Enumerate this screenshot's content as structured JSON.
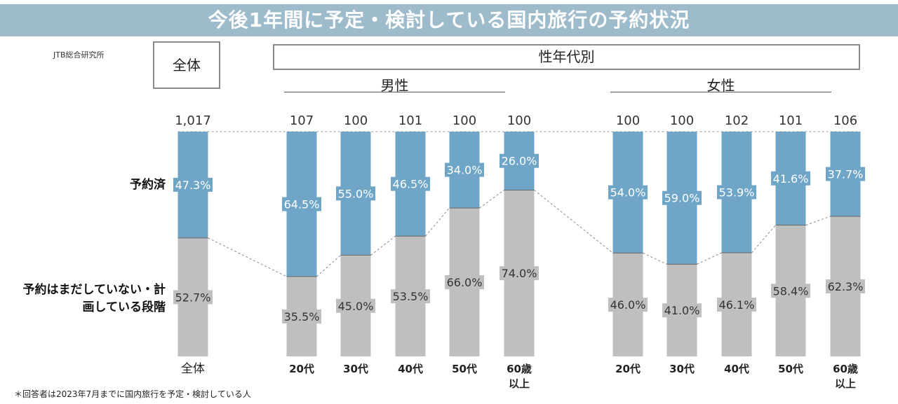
{
  "title": "今後1年間に予定・検討している国内旅行の予約状況",
  "source": "JTB総合研究所",
  "footnote": "＊回答者は2023年7月までに国内旅行を予定・検討している人",
  "headers": {
    "overall": "全体",
    "by_gender_age": "性年代別",
    "male": "男性",
    "female": "女性"
  },
  "row_labels": {
    "booked": "予約済",
    "not_booked": "予約はまだしていない・計画している段階"
  },
  "colors": {
    "booked": "#6fa5c6",
    "not_booked": "#bfbfbf",
    "banner": "#9dbbcb"
  },
  "chart_data": {
    "type": "bar",
    "stacked": "100%",
    "ylim": [
      0,
      100
    ],
    "categories": [
      "全体",
      "20代",
      "30代",
      "40代",
      "50代",
      "60歳以上",
      "20代",
      "30代",
      "40代",
      "50代",
      "60歳以上"
    ],
    "category_display": [
      "全体",
      "20代",
      "30代",
      "40代",
      "50代",
      "60歳\n以上",
      "20代",
      "30代",
      "40代",
      "50代",
      "60歳\n以上"
    ],
    "groups": [
      "全体",
      "男性",
      "男性",
      "男性",
      "男性",
      "男性",
      "女性",
      "女性",
      "女性",
      "女性",
      "女性"
    ],
    "n": [
      "1,017",
      "107",
      "100",
      "101",
      "100",
      "100",
      "100",
      "100",
      "102",
      "101",
      "106"
    ],
    "series": [
      {
        "name": "予約済",
        "values": [
          47.3,
          64.5,
          55.0,
          46.5,
          34.0,
          26.0,
          54.0,
          59.0,
          53.9,
          41.6,
          37.7
        ]
      },
      {
        "name": "予約はまだしていない・計画している段階",
        "values": [
          52.7,
          35.5,
          45.0,
          53.5,
          66.0,
          74.0,
          46.0,
          41.0,
          46.1,
          58.4,
          62.3
        ]
      }
    ],
    "value_format": "0.0%"
  }
}
